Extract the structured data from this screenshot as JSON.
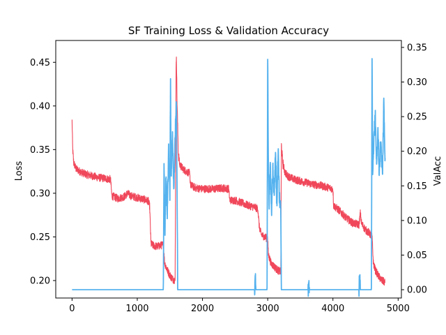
{
  "chart_data": {
    "type": "line",
    "title": "SF Training Loss & Validation Accuracy",
    "xlabel": "",
    "ylabel_left": "Loss",
    "ylabel_right": "ValAcc",
    "xlim": [
      -250,
      5050
    ],
    "ylim_left": [
      0.18,
      0.475
    ],
    "ylim_right": [
      -0.012,
      0.36
    ],
    "x_ticks": [
      0,
      1000,
      2000,
      3000,
      4000,
      5000
    ],
    "x_tick_labels": [
      "0",
      "1000",
      "2000",
      "3000",
      "4000",
      "5000"
    ],
    "y_left_ticks": [
      0.2,
      0.25,
      0.3,
      0.35,
      0.4,
      0.45
    ],
    "y_left_tick_labels": [
      "0.20",
      "0.25",
      "0.30",
      "0.35",
      "0.40",
      "0.45"
    ],
    "y_right_ticks": [
      0.0,
      0.05,
      0.1,
      0.15,
      0.2,
      0.25,
      0.3,
      0.35
    ],
    "y_right_tick_labels": [
      "0.00",
      "0.05",
      "0.10",
      "0.15",
      "0.20",
      "0.25",
      "0.30",
      "0.35"
    ],
    "grid": false,
    "legend": "none",
    "series": [
      {
        "axis": "left",
        "color": "#f0475a",
        "points": [
          [
            0,
            0.383
          ],
          [
            10,
            0.35
          ],
          [
            25,
            0.335
          ],
          [
            60,
            0.328
          ],
          [
            120,
            0.325
          ],
          [
            200,
            0.322
          ],
          [
            300,
            0.32
          ],
          [
            400,
            0.318
          ],
          [
            500,
            0.317
          ],
          [
            590,
            0.316
          ],
          [
            610,
            0.297
          ],
          [
            700,
            0.294
          ],
          [
            800,
            0.296
          ],
          [
            850,
            0.3
          ],
          [
            900,
            0.297
          ],
          [
            1000,
            0.295
          ],
          [
            1100,
            0.293
          ],
          [
            1170,
            0.291
          ],
          [
            1190,
            0.285
          ],
          [
            1210,
            0.242
          ],
          [
            1250,
            0.24
          ],
          [
            1300,
            0.239
          ],
          [
            1350,
            0.24
          ],
          [
            1400,
            0.241
          ],
          [
            1420,
            0.22
          ],
          [
            1460,
            0.212
          ],
          [
            1500,
            0.206
          ],
          [
            1540,
            0.202
          ],
          [
            1580,
            0.2
          ],
          [
            1595,
            0.44
          ],
          [
            1600,
            0.46
          ],
          [
            1610,
            0.405
          ],
          [
            1630,
            0.345
          ],
          [
            1650,
            0.333
          ],
          [
            1700,
            0.328
          ],
          [
            1750,
            0.325
          ],
          [
            1800,
            0.323
          ],
          [
            1820,
            0.309
          ],
          [
            1900,
            0.306
          ],
          [
            2000,
            0.305
          ],
          [
            2100,
            0.305
          ],
          [
            2200,
            0.305
          ],
          [
            2300,
            0.306
          ],
          [
            2400,
            0.305
          ],
          [
            2420,
            0.292
          ],
          [
            2500,
            0.292
          ],
          [
            2600,
            0.289
          ],
          [
            2700,
            0.286
          ],
          [
            2800,
            0.284
          ],
          [
            2850,
            0.282
          ],
          [
            2870,
            0.262
          ],
          [
            2900,
            0.253
          ],
          [
            2950,
            0.25
          ],
          [
            3000,
            0.248
          ],
          [
            3010,
            0.23
          ],
          [
            3050,
            0.22
          ],
          [
            3100,
            0.216
          ],
          [
            3150,
            0.212
          ],
          [
            3200,
            0.21
          ],
          [
            3210,
            0.355
          ],
          [
            3230,
            0.335
          ],
          [
            3260,
            0.325
          ],
          [
            3300,
            0.32
          ],
          [
            3400,
            0.316
          ],
          [
            3500,
            0.314
          ],
          [
            3600,
            0.312
          ],
          [
            3700,
            0.31
          ],
          [
            3800,
            0.309
          ],
          [
            3900,
            0.307
          ],
          [
            4000,
            0.305
          ],
          [
            4010,
            0.286
          ],
          [
            4100,
            0.28
          ],
          [
            4200,
            0.272
          ],
          [
            4300,
            0.266
          ],
          [
            4400,
            0.264
          ],
          [
            4420,
            0.277
          ],
          [
            4440,
            0.265
          ],
          [
            4500,
            0.258
          ],
          [
            4550,
            0.255
          ],
          [
            4600,
            0.25
          ],
          [
            4620,
            0.22
          ],
          [
            4650,
            0.212
          ],
          [
            4700,
            0.205
          ],
          [
            4750,
            0.2
          ],
          [
            4800,
            0.198
          ]
        ]
      },
      {
        "axis": "right",
        "color": "#55b2ee",
        "points": [
          [
            0,
            0.0
          ],
          [
            1400,
            0.0
          ],
          [
            1410,
            0.18
          ],
          [
            1425,
            0.09
          ],
          [
            1440,
            0.16
          ],
          [
            1460,
            0.11
          ],
          [
            1480,
            0.2
          ],
          [
            1500,
            0.14
          ],
          [
            1510,
            0.3
          ],
          [
            1520,
            0.16
          ],
          [
            1540,
            0.23
          ],
          [
            1560,
            0.14
          ],
          [
            1580,
            0.22
          ],
          [
            1600,
            0.27
          ],
          [
            1610,
            0.15
          ],
          [
            1620,
            0.0
          ],
          [
            2800,
            0.0
          ],
          [
            2810,
            0.02
          ],
          [
            2820,
            0.0
          ],
          [
            2990,
            0.0
          ],
          [
            3000,
            0.34
          ],
          [
            3010,
            0.18
          ],
          [
            3020,
            0.12
          ],
          [
            3040,
            0.18
          ],
          [
            3060,
            0.11
          ],
          [
            3080,
            0.18
          ],
          [
            3100,
            0.13
          ],
          [
            3120,
            0.2
          ],
          [
            3140,
            0.12
          ],
          [
            3160,
            0.2
          ],
          [
            3180,
            0.13
          ],
          [
            3200,
            0.12
          ],
          [
            3210,
            0.0
          ],
          [
            3260,
            0.0
          ],
          [
            3620,
            0.0
          ],
          [
            3630,
            0.01
          ],
          [
            3640,
            0.0
          ],
          [
            4400,
            0.0
          ],
          [
            4410,
            0.02
          ],
          [
            4420,
            0.0
          ],
          [
            4590,
            0.0
          ],
          [
            4600,
            0.33
          ],
          [
            4610,
            0.16
          ],
          [
            4630,
            0.22
          ],
          [
            4650,
            0.25
          ],
          [
            4670,
            0.18
          ],
          [
            4690,
            0.23
          ],
          [
            4710,
            0.17
          ],
          [
            4730,
            0.21
          ],
          [
            4760,
            0.17
          ],
          [
            4780,
            0.27
          ],
          [
            4800,
            0.19
          ]
        ]
      }
    ]
  }
}
